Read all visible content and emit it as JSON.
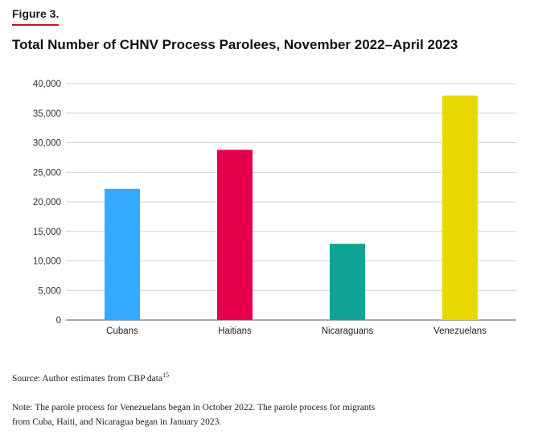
{
  "figure_label": "Figure 3.",
  "source": {
    "text": "Source: Author estimates from CBP data",
    "footnote": "15"
  },
  "note": "Note: The parole process for Venezuelans began in October 2022. The parole process for migrants from Cuba, Haiti, and Nicaragua began in January 2023.",
  "colors": {
    "accent_rule": "#c8102e",
    "gridline": "#d0d0d0",
    "axis": "#555555"
  },
  "chart_data": {
    "type": "bar",
    "title": "Total Number of CHNV Process Parolees, November 2022–April 2023",
    "xlabel": "",
    "ylabel": "",
    "categories": [
      "Cubans",
      "Haitians",
      "Nicaraguans",
      "Venezuelans"
    ],
    "values": [
      22200,
      28800,
      12900,
      38000
    ],
    "colors": [
      "#35a8ff",
      "#e6004c",
      "#0fa396",
      "#e8d900"
    ],
    "ylim": [
      0,
      40000
    ],
    "yticks": [
      0,
      5000,
      10000,
      15000,
      20000,
      25000,
      30000,
      35000,
      40000
    ],
    "ytick_labels": [
      "0",
      "5,000",
      "10,000",
      "15,000",
      "20,000",
      "25,000",
      "30,000",
      "35,000",
      "40,000"
    ],
    "grid": true,
    "legend": "none"
  }
}
